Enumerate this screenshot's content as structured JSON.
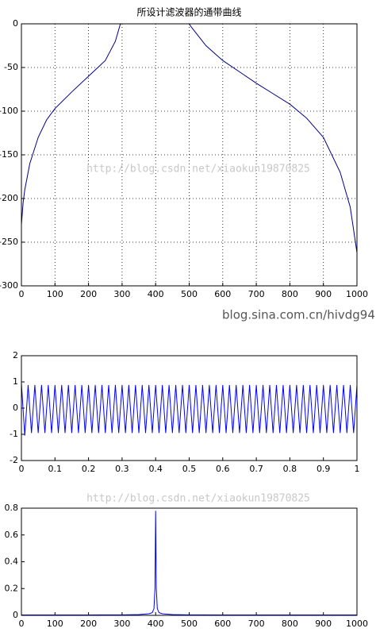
{
  "chart_data": [
    {
      "type": "line",
      "title": "所设计滤波器的通带曲线",
      "grid": true,
      "xlim": [
        0,
        1000
      ],
      "xticks": [
        0,
        100,
        200,
        300,
        400,
        500,
        600,
        700,
        800,
        900,
        1000
      ],
      "ylim": [
        -300,
        0
      ],
      "yticks": [
        0,
        -50,
        -100,
        -150,
        -200,
        -250,
        -300
      ],
      "x": [
        0,
        5,
        10,
        25,
        50,
        75,
        100,
        150,
        200,
        250,
        280,
        295,
        300,
        400,
        500,
        505,
        550,
        600,
        650,
        700,
        750,
        800,
        850,
        900,
        950,
        980,
        1000
      ],
      "series": [
        {
          "color": "#00008b",
          "values": [
            -230,
            -205,
            -190,
            -160,
            -130,
            -110,
            -97,
            -78,
            -60,
            -42,
            -20,
            0,
            0,
            0,
            0,
            -3,
            -25,
            -42,
            -55,
            -68,
            -80,
            -92,
            -108,
            -130,
            -170,
            -210,
            -262
          ]
        }
      ],
      "annotations": [
        "http://blog.csdn.net/xiaokun19870825",
        "blog.sina.com.cn/hivdg94"
      ]
    },
    {
      "type": "line",
      "grid": false,
      "xlim": [
        0,
        1
      ],
      "xticks": [
        0,
        0.1,
        0.2,
        0.3,
        0.4,
        0.5,
        0.6,
        0.7,
        0.8,
        0.9,
        1
      ],
      "ylim": [
        -2,
        2
      ],
      "yticks": [
        2,
        1,
        0,
        -1,
        -2
      ],
      "x": [
        0,
        0.01,
        0.02,
        0.03,
        0.04,
        0.05,
        0.06,
        0.07,
        0.08,
        0.09,
        0.1,
        0.11,
        0.12,
        0.13,
        0.14,
        0.15,
        0.16,
        0.17,
        0.18,
        0.19,
        0.2,
        0.21,
        0.22,
        0.23,
        0.24,
        0.25,
        0.26,
        0.27,
        0.28,
        0.29,
        0.3,
        0.31,
        0.32,
        0.33,
        0.34,
        0.35,
        0.36,
        0.37,
        0.38,
        0.39,
        0.4,
        0.41,
        0.42,
        0.43,
        0.44,
        0.45,
        0.46,
        0.47,
        0.48,
        0.49,
        0.5,
        0.51,
        0.52,
        0.53,
        0.54,
        0.55,
        0.56,
        0.57,
        0.58,
        0.59,
        0.6,
        0.61,
        0.62,
        0.63,
        0.64,
        0.65,
        0.66,
        0.67,
        0.68,
        0.69,
        0.7,
        0.71,
        0.72,
        0.73,
        0.74,
        0.75,
        0.76,
        0.77,
        0.78,
        0.79,
        0.8,
        0.81,
        0.82,
        0.83,
        0.84,
        0.85,
        0.86,
        0.87,
        0.88,
        0.89,
        0.9,
        0.91,
        0.92,
        0.93,
        0.94,
        0.95,
        0.96,
        0.97,
        0.98,
        0.99,
        1
      ],
      "series": [
        {
          "color": "#0000ff",
          "values": [
            0.95,
            -1.05,
            0.88,
            -0.95,
            0.88,
            -0.95,
            0.88,
            -0.95,
            0.88,
            -0.95,
            0.88,
            -0.95,
            0.88,
            -0.95,
            0.88,
            -0.95,
            0.88,
            -0.95,
            0.88,
            -0.95,
            0.88,
            -0.95,
            0.88,
            -0.95,
            0.88,
            -0.95,
            0.88,
            -0.95,
            0.88,
            -0.95,
            0.88,
            -0.95,
            0.88,
            -0.95,
            0.88,
            -0.95,
            0.88,
            -0.95,
            0.88,
            -0.95,
            0.88,
            -0.95,
            0.88,
            -0.95,
            0.88,
            -0.95,
            0.88,
            -0.95,
            0.88,
            -0.95,
            0.88,
            -0.95,
            0.88,
            -0.95,
            0.88,
            -0.95,
            0.88,
            -0.95,
            0.88,
            -0.95,
            0.88,
            -0.95,
            0.88,
            -0.95,
            0.88,
            -0.95,
            0.88,
            -0.95,
            0.88,
            -0.95,
            0.88,
            -0.95,
            0.88,
            -0.95,
            0.88,
            -0.95,
            0.88,
            -0.95,
            0.88,
            -0.95,
            0.88,
            -0.95,
            0.88,
            -0.95,
            0.88,
            -0.95,
            0.88,
            -0.95,
            0.88,
            -0.95,
            0.88,
            -0.95,
            0.88,
            -0.95,
            0.88,
            -0.95,
            0.88,
            -0.95,
            0.88,
            -0.95,
            0.88
          ]
        }
      ]
    },
    {
      "type": "line",
      "grid": false,
      "xlim": [
        0,
        1000
      ],
      "xticks": [
        0,
        100,
        200,
        300,
        400,
        500,
        600,
        700,
        800,
        900,
        1000
      ],
      "ylim": [
        0,
        0.8
      ],
      "yticks": [
        0.8,
        0.6,
        0.4,
        0.2,
        0
      ],
      "x": [
        0,
        100,
        200,
        300,
        350,
        380,
        390,
        395,
        398,
        400,
        402,
        405,
        410,
        420,
        450,
        500,
        600,
        700,
        800,
        900,
        1000
      ],
      "series": [
        {
          "color": "#0000ff",
          "values": [
            0.003,
            0.003,
            0.003,
            0.004,
            0.006,
            0.012,
            0.02,
            0.05,
            0.2,
            0.78,
            0.2,
            0.05,
            0.02,
            0.012,
            0.006,
            0.004,
            0.003,
            0.003,
            0.003,
            0.003,
            0.003
          ]
        }
      ],
      "annotations": [
        "http://blog.csdn.net/xiaokun19870825"
      ]
    }
  ]
}
